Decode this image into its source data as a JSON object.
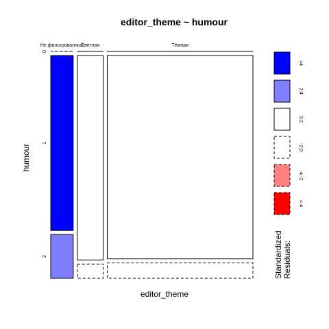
{
  "chart_data": {
    "type": "mosaic",
    "title": "editor_theme ~ humour",
    "xlabel": "editor_theme",
    "ylabel": "humour",
    "x_categories": [
      "Не фильтрованный",
      "Светлая",
      "Тёмная"
    ],
    "y_categories": [
      "0",
      "1",
      "2"
    ],
    "x_widths": [
      0.116,
      0.133,
      0.751
    ],
    "cells": [
      {
        "x": "Не фильтрованный",
        "y": "0",
        "fraction": 0.0,
        "shade": "-2:0",
        "color": "#FFFFFF",
        "dashed": true
      },
      {
        "x": "Не фильтрованный",
        "y": "1",
        "fraction": 0.8,
        "shade": ">4",
        "color": "#0000FF",
        "dashed": false
      },
      {
        "x": "Не фильтрованный",
        "y": "2",
        "fraction": 0.2,
        "shade": "2:4",
        "color": "#8080FF",
        "dashed": false
      },
      {
        "x": "Светлая",
        "y": "0",
        "fraction": 0.0,
        "shade": "0:2",
        "color": "#FFFFFF",
        "dashed": false
      },
      {
        "x": "Светлая",
        "y": "1",
        "fraction": 0.935,
        "shade": "0:2",
        "color": "#FFFFFF",
        "dashed": false
      },
      {
        "x": "Светлая",
        "y": "2",
        "fraction": 0.065,
        "shade": "-2:0",
        "color": "#FFFFFF",
        "dashed": true
      },
      {
        "x": "Тёмная",
        "y": "0",
        "fraction": 0.0,
        "shade": "0:2",
        "color": "#FFFFFF",
        "dashed": false
      },
      {
        "x": "Тёмная",
        "y": "1",
        "fraction": 0.93,
        "shade": "0:2",
        "color": "#FFFFFF",
        "dashed": false
      },
      {
        "x": "Тёмная",
        "y": "2",
        "fraction": 0.07,
        "shade": "-2:0",
        "color": "#FFFFFF",
        "dashed": true
      }
    ],
    "legend": {
      "title": "Standardized Residuals:",
      "placement": "right",
      "items": [
        {
          "label": ">4",
          "color": "#0000FF",
          "dashed": false
        },
        {
          "label": "2:4",
          "color": "#8080FF",
          "dashed": false
        },
        {
          "label": "0:2",
          "color": "#FFFFFF",
          "dashed": false
        },
        {
          "label": "-2:0",
          "color": "#FFFFFF",
          "dashed": true
        },
        {
          "label": "-4:-2",
          "color": "#FF8080",
          "dashed": true
        },
        {
          "label": "<-4",
          "color": "#FF0000",
          "dashed": true
        }
      ]
    }
  }
}
